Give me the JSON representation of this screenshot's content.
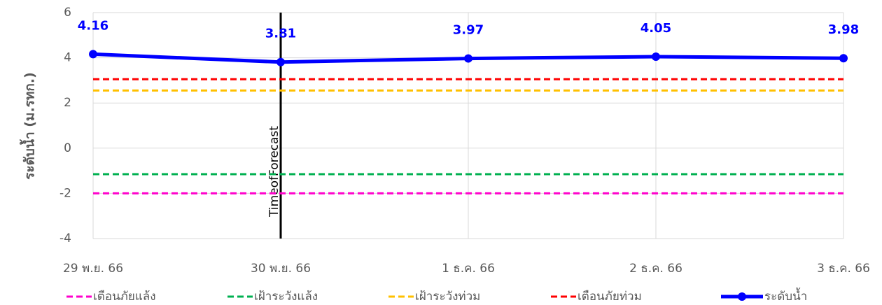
{
  "chart_data": {
    "type": "line",
    "y_label": "ระดับน้ำ (ม.รทก.)",
    "categories": [
      "29 พ.ย. 66",
      "30 พ.ย. 66",
      "1 ธ.ค. 66",
      "2 ธ.ค. 66",
      "3 ธ.ค. 66"
    ],
    "series": [
      {
        "name": "เตือนภัยแล้ง",
        "color": "#ff00cc",
        "style": "dashed",
        "values": [
          -2.0,
          -2.0,
          -2.0,
          -2.0,
          -2.0
        ]
      },
      {
        "name": "เฝ้าระวังแล้ง",
        "color": "#00b050",
        "style": "dashed",
        "values": [
          -1.15,
          -1.15,
          -1.15,
          -1.15,
          -1.15
        ]
      },
      {
        "name": "เฝ้าระวังท่วม",
        "color": "#ffc000",
        "style": "dashed",
        "values": [
          2.55,
          2.55,
          2.55,
          2.55,
          2.55
        ]
      },
      {
        "name": "เตือนภัยท่วม",
        "color": "#ff0000",
        "style": "dashed",
        "values": [
          3.05,
          3.05,
          3.05,
          3.05,
          3.05
        ]
      },
      {
        "name": "ระดับน้ำ",
        "color": "#0000ff",
        "style": "solid",
        "markers": true,
        "data_labels": true,
        "values": [
          4.16,
          3.81,
          3.97,
          4.05,
          3.98
        ]
      }
    ],
    "annotation": {
      "text": "TimeofForecast",
      "x": "30 พ.ย. 66"
    },
    "ylim": [
      -4,
      6
    ],
    "yticks": [
      -4,
      -2,
      0,
      2,
      4,
      6
    ],
    "grid": true,
    "legend": "bottom"
  }
}
